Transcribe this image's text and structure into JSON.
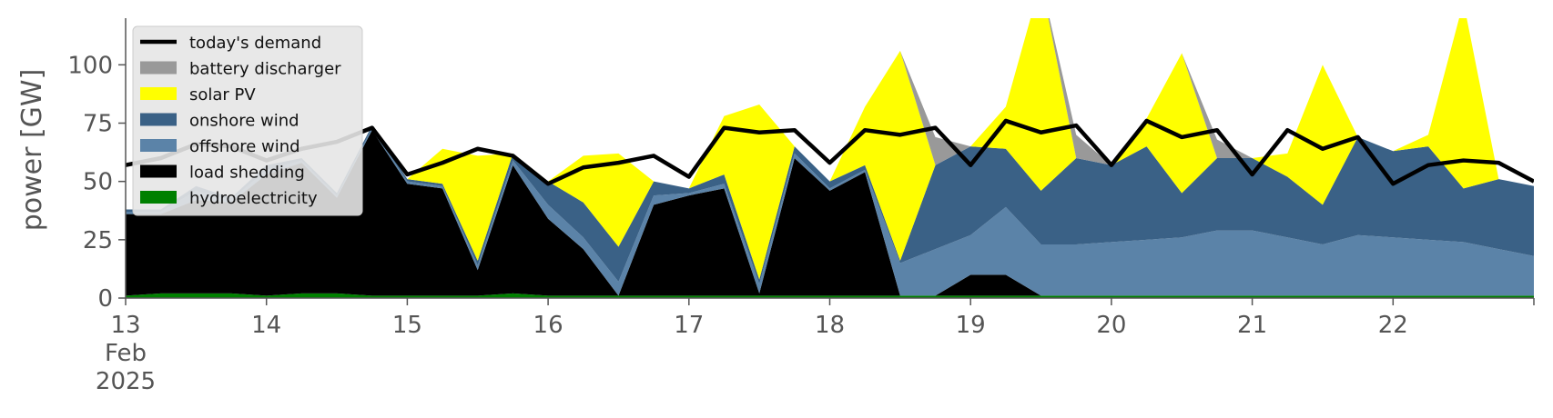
{
  "chart_data": {
    "type": "area",
    "title": "",
    "xlabel": "",
    "ylabel": "power [GW]",
    "ylim": [
      0,
      120
    ],
    "xlim": [
      13,
      23
    ],
    "yticks": [
      0,
      25,
      50,
      75,
      100
    ],
    "xtick_labels": [
      {
        "x": 13,
        "lines": [
          "13",
          "Feb",
          "2025"
        ]
      },
      {
        "x": 14,
        "lines": [
          "14"
        ]
      },
      {
        "x": 15,
        "lines": [
          "15"
        ]
      },
      {
        "x": 16,
        "lines": [
          "16"
        ]
      },
      {
        "x": 17,
        "lines": [
          "17"
        ]
      },
      {
        "x": 18,
        "lines": [
          "18"
        ]
      },
      {
        "x": 19,
        "lines": [
          "19"
        ]
      },
      {
        "x": 20,
        "lines": [
          "20"
        ]
      },
      {
        "x": 21,
        "lines": [
          "21"
        ]
      },
      {
        "x": 22,
        "lines": [
          "22"
        ]
      }
    ],
    "grid": false,
    "legend_position": "top-left",
    "x": [
      13.0,
      13.25,
      13.5,
      13.75,
      14.0,
      14.25,
      14.5,
      14.75,
      15.0,
      15.25,
      15.5,
      15.75,
      16.0,
      16.25,
      16.5,
      16.75,
      17.0,
      17.25,
      17.5,
      17.75,
      18.0,
      18.25,
      18.5,
      18.75,
      19.0,
      19.25,
      19.5,
      19.75,
      20.0,
      20.25,
      20.5,
      20.75,
      21.0,
      21.25,
      21.5,
      21.75,
      22.0,
      22.25,
      22.5,
      22.75,
      23.0
    ],
    "series": [
      {
        "name": "hydroelectricity",
        "color": "#008000",
        "values": [
          1,
          2,
          2,
          2,
          1,
          2,
          2,
          1,
          1,
          1,
          1,
          2,
          1,
          1,
          1,
          1,
          1,
          1,
          1,
          1,
          1,
          1,
          1,
          1,
          1,
          1,
          1,
          1,
          1,
          1,
          1,
          1,
          1,
          1,
          1,
          1,
          1,
          1,
          1,
          1,
          1
        ]
      },
      {
        "name": "load shedding",
        "color": "#000000",
        "values": [
          35,
          34,
          40,
          39,
          52,
          56,
          41,
          71,
          48,
          46,
          11,
          55,
          33,
          20,
          0,
          39,
          43,
          46,
          1,
          59,
          45,
          53,
          0,
          0,
          9,
          9,
          0,
          0,
          0,
          0,
          0,
          0,
          0,
          0,
          0,
          0,
          0,
          0,
          0,
          0,
          0
        ]
      },
      {
        "name": "offshore wind",
        "color": "#5b83a8",
        "values": [
          1,
          1,
          4,
          1,
          2,
          1,
          1,
          1,
          1,
          1,
          2,
          2,
          6,
          5,
          6,
          4,
          1,
          2,
          4,
          2,
          1,
          1,
          14,
          20,
          17,
          29,
          22,
          22,
          23,
          24,
          25,
          28,
          28,
          25,
          22,
          26,
          25,
          24,
          23,
          20,
          17
        ]
      },
      {
        "name": "onshore wind",
        "color": "#3a6186",
        "values": [
          1,
          1,
          2,
          1,
          2,
          1,
          1,
          1,
          1,
          1,
          2,
          3,
          10,
          15,
          15,
          6,
          2,
          4,
          2,
          3,
          3,
          2,
          1,
          36,
          38,
          25,
          23,
          37,
          33,
          40,
          19,
          31,
          31,
          26,
          17,
          42,
          37,
          40,
          23,
          30,
          30
        ]
      },
      {
        "name": "solar PV",
        "color": "#ffff00",
        "values": [
          0,
          0,
          0,
          0,
          0,
          0,
          0,
          0,
          0,
          15,
          45,
          0,
          0,
          20,
          40,
          0,
          0,
          25,
          75,
          0,
          0,
          25,
          90,
          0,
          0,
          18,
          90,
          0,
          0,
          12,
          60,
          0,
          0,
          10,
          60,
          0,
          0,
          5,
          80,
          0,
          0
        ]
      },
      {
        "name": "battery discharger",
        "color": "#999999",
        "values": [
          0,
          0,
          0,
          0,
          0,
          0,
          0,
          0,
          0,
          0,
          0,
          0,
          0,
          0,
          0,
          0,
          0,
          0,
          0,
          0,
          0,
          0,
          0,
          12,
          0,
          0,
          0,
          10,
          0,
          0,
          0,
          8,
          0,
          0,
          0,
          0,
          0,
          0,
          0,
          0,
          0
        ]
      }
    ],
    "demand": {
      "name": "today's demand",
      "color": "#000000",
      "values": [
        57,
        60,
        66,
        65,
        59,
        64,
        67,
        73,
        53,
        58,
        64,
        61,
        49,
        56,
        58,
        61,
        52,
        73,
        71,
        72,
        58,
        72,
        70,
        73,
        57,
        76,
        71,
        74,
        57,
        76,
        69,
        72,
        53,
        72,
        64,
        69,
        49,
        57,
        59,
        58,
        50
      ]
    },
    "legend": [
      {
        "label": "today's demand",
        "kind": "line",
        "color": "#000000"
      },
      {
        "label": "battery discharger",
        "kind": "patch",
        "color": "#999999"
      },
      {
        "label": "solar PV",
        "kind": "patch",
        "color": "#ffff00"
      },
      {
        "label": "onshore wind",
        "kind": "patch",
        "color": "#3a6186"
      },
      {
        "label": "offshore wind",
        "kind": "patch",
        "color": "#5b83a8"
      },
      {
        "label": "load shedding",
        "kind": "patch",
        "color": "#000000"
      },
      {
        "label": "hydroelectricity",
        "kind": "patch",
        "color": "#008000"
      }
    ]
  }
}
